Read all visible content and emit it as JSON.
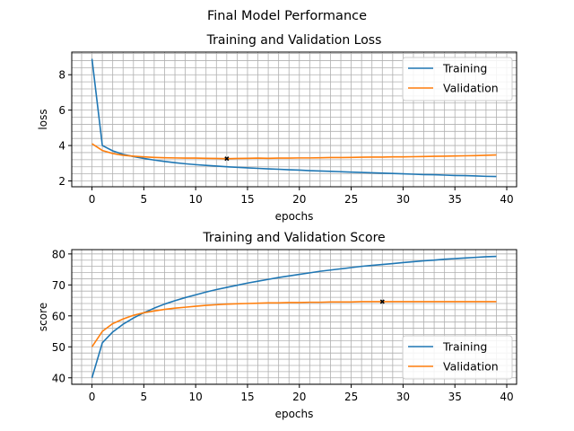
{
  "figure_title": "Final Model Performance",
  "colors": {
    "training": "#1f77b4",
    "validation": "#ff7f0e",
    "best_marker": "#000000",
    "grid": "#b0b0b0"
  },
  "chart_data": [
    {
      "type": "line",
      "title": "Training and Validation Loss",
      "xlabel": "epochs",
      "ylabel": "loss",
      "xlim": [
        -1.95,
        40.95
      ],
      "ylim": [
        1.67,
        9.28
      ],
      "xticks": [
        0,
        5,
        10,
        15,
        20,
        25,
        30,
        35,
        40
      ],
      "yticks": [
        2,
        4,
        6,
        8
      ],
      "grid": true,
      "legend_position": "top-right",
      "x": [
        0,
        1,
        2,
        3,
        4,
        5,
        6,
        7,
        8,
        9,
        10,
        11,
        12,
        13,
        14,
        15,
        16,
        17,
        18,
        19,
        20,
        21,
        22,
        23,
        24,
        25,
        26,
        27,
        28,
        29,
        30,
        31,
        32,
        33,
        34,
        35,
        36,
        37,
        38,
        39
      ],
      "series": [
        {
          "name": "Training",
          "values": [
            8.9,
            4.0,
            3.7,
            3.5,
            3.38,
            3.27,
            3.18,
            3.1,
            3.03,
            2.97,
            2.92,
            2.88,
            2.84,
            2.8,
            2.77,
            2.74,
            2.71,
            2.68,
            2.66,
            2.63,
            2.61,
            2.58,
            2.56,
            2.54,
            2.52,
            2.5,
            2.48,
            2.46,
            2.44,
            2.42,
            2.4,
            2.38,
            2.36,
            2.35,
            2.33,
            2.31,
            2.3,
            2.28,
            2.26,
            2.25
          ]
        },
        {
          "name": "Validation",
          "values": [
            4.1,
            3.72,
            3.55,
            3.45,
            3.4,
            3.36,
            3.33,
            3.31,
            3.3,
            3.29,
            3.29,
            3.28,
            3.27,
            3.26,
            3.27,
            3.28,
            3.29,
            3.28,
            3.29,
            3.29,
            3.3,
            3.3,
            3.31,
            3.32,
            3.32,
            3.33,
            3.34,
            3.35,
            3.35,
            3.36,
            3.36,
            3.37,
            3.38,
            3.39,
            3.4,
            3.41,
            3.42,
            3.43,
            3.45,
            3.47
          ]
        }
      ],
      "best_point": {
        "x": 13,
        "y": 3.26
      }
    },
    {
      "type": "line",
      "title": "Training and Validation Score",
      "xlabel": "epochs",
      "ylabel": "score",
      "xlim": [
        -1.95,
        40.95
      ],
      "ylim": [
        37.9,
        81.4
      ],
      "xticks": [
        0,
        5,
        10,
        15,
        20,
        25,
        30,
        35,
        40
      ],
      "yticks": [
        40,
        50,
        60,
        70,
        80
      ],
      "grid": true,
      "legend_position": "bottom-right",
      "x": [
        0,
        1,
        2,
        3,
        4,
        5,
        6,
        7,
        8,
        9,
        10,
        11,
        12,
        13,
        14,
        15,
        16,
        17,
        18,
        19,
        20,
        21,
        22,
        23,
        24,
        25,
        26,
        27,
        28,
        29,
        30,
        31,
        32,
        33,
        34,
        35,
        36,
        37,
        38,
        39
      ],
      "series": [
        {
          "name": "Training",
          "values": [
            40,
            51.3,
            54.8,
            57.3,
            59.3,
            61,
            62.5,
            63.8,
            64.9,
            65.9,
            66.8,
            67.7,
            68.5,
            69.2,
            69.9,
            70.6,
            71.2,
            71.8,
            72.4,
            72.9,
            73.4,
            73.9,
            74.4,
            74.8,
            75.2,
            75.6,
            76,
            76.3,
            76.6,
            76.9,
            77.2,
            77.5,
            77.8,
            78,
            78.3,
            78.5,
            78.7,
            78.9,
            79.1,
            79.2
          ]
        },
        {
          "name": "Validation",
          "values": [
            50,
            55,
            57.5,
            59,
            60.2,
            61,
            61.6,
            62.1,
            62.5,
            62.8,
            63.1,
            63.4,
            63.6,
            63.8,
            63.9,
            64,
            64.1,
            64.2,
            64.2,
            64.3,
            64.3,
            64.4,
            64.4,
            64.5,
            64.5,
            64.5,
            64.6,
            64.6,
            64.6,
            64.6,
            64.6,
            64.6,
            64.6,
            64.6,
            64.6,
            64.6,
            64.6,
            64.6,
            64.6,
            64.6
          ]
        }
      ],
      "best_point": {
        "x": 28,
        "y": 64.6
      }
    }
  ]
}
